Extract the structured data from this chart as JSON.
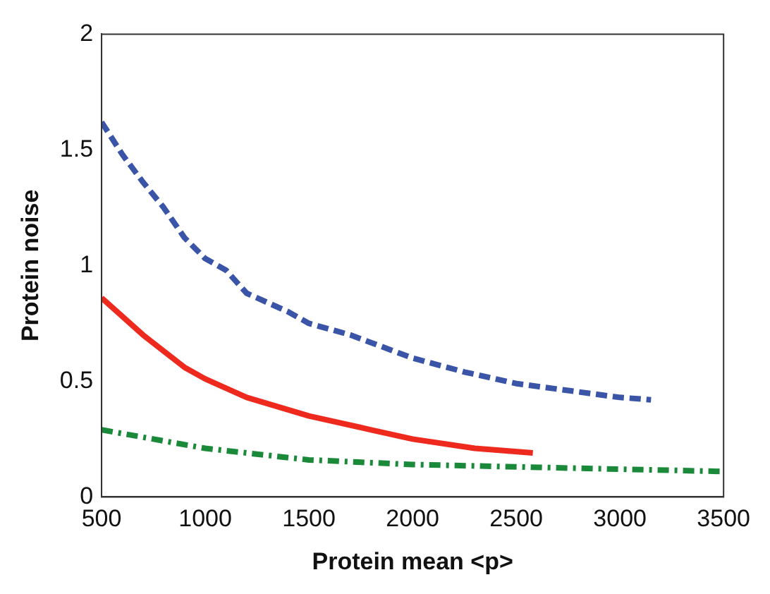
{
  "chart_data": {
    "type": "line",
    "xlabel": "Protein mean <p>",
    "ylabel": "Protein noise",
    "xlim": [
      500,
      3500
    ],
    "ylim": [
      0,
      2
    ],
    "xticks": [
      500,
      1000,
      1500,
      2000,
      2500,
      3000,
      3500
    ],
    "yticks": [
      0,
      0.5,
      1,
      1.5,
      2
    ],
    "grid": false,
    "legend": false,
    "marker": "none",
    "series": [
      {
        "color": "#3a55a8",
        "line_style": "dashed",
        "x": [
          500,
          600,
          700,
          800,
          900,
          1000,
          1100,
          1200,
          1400,
          1500,
          1700,
          2000,
          2250,
          2500,
          2750,
          3000,
          3150
        ],
        "values": [
          1.62,
          1.48,
          1.36,
          1.25,
          1.12,
          1.03,
          0.98,
          0.88,
          0.8,
          0.75,
          0.7,
          0.6,
          0.54,
          0.49,
          0.46,
          0.43,
          0.42
        ]
      },
      {
        "color": "#ee2a1f",
        "line_style": "solid",
        "x": [
          500,
          700,
          900,
          1000,
          1200,
          1500,
          1800,
          2000,
          2300,
          2580
        ],
        "values": [
          0.86,
          0.7,
          0.56,
          0.51,
          0.43,
          0.35,
          0.29,
          0.25,
          0.21,
          0.19
        ]
      },
      {
        "color": "#1a8a3a",
        "line_style": "dashdot",
        "x": [
          500,
          1000,
          1500,
          2000,
          2500,
          3000,
          3500
        ],
        "values": [
          0.29,
          0.21,
          0.16,
          0.14,
          0.13,
          0.12,
          0.11
        ]
      }
    ]
  }
}
